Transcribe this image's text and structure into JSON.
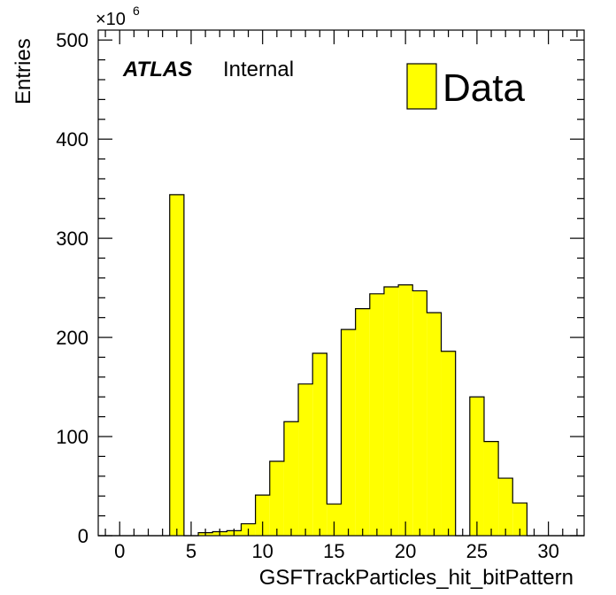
{
  "chart_data": {
    "type": "bar",
    "xlabel": "GSFTrackParticles_hit_bitPattern",
    "ylabel": "Entries",
    "y_multiplier": "×10",
    "y_multiplier_exp": "6",
    "xlim": [
      -1.5,
      32.5
    ],
    "ylim": [
      0,
      510
    ],
    "x_ticks": [
      0,
      5,
      10,
      15,
      20,
      25,
      30
    ],
    "y_ticks": [
      0,
      100,
      200,
      300,
      400,
      500
    ],
    "bin_edges_start": -1.5,
    "bin_width": 1,
    "values": [
      0,
      0,
      0,
      0,
      0,
      344,
      0,
      3,
      4,
      5,
      12,
      41,
      75,
      115,
      153,
      184,
      32,
      208,
      229,
      244,
      251,
      253,
      247,
      225,
      186,
      0,
      140,
      95,
      58,
      33,
      0,
      0,
      0,
      0
    ],
    "fill_color": "#ffff00",
    "edge_color": "#000000",
    "legend": {
      "label": "Data",
      "position": "top-right"
    },
    "annotations": {
      "atlas": "ATLAS",
      "status": "Internal"
    }
  }
}
